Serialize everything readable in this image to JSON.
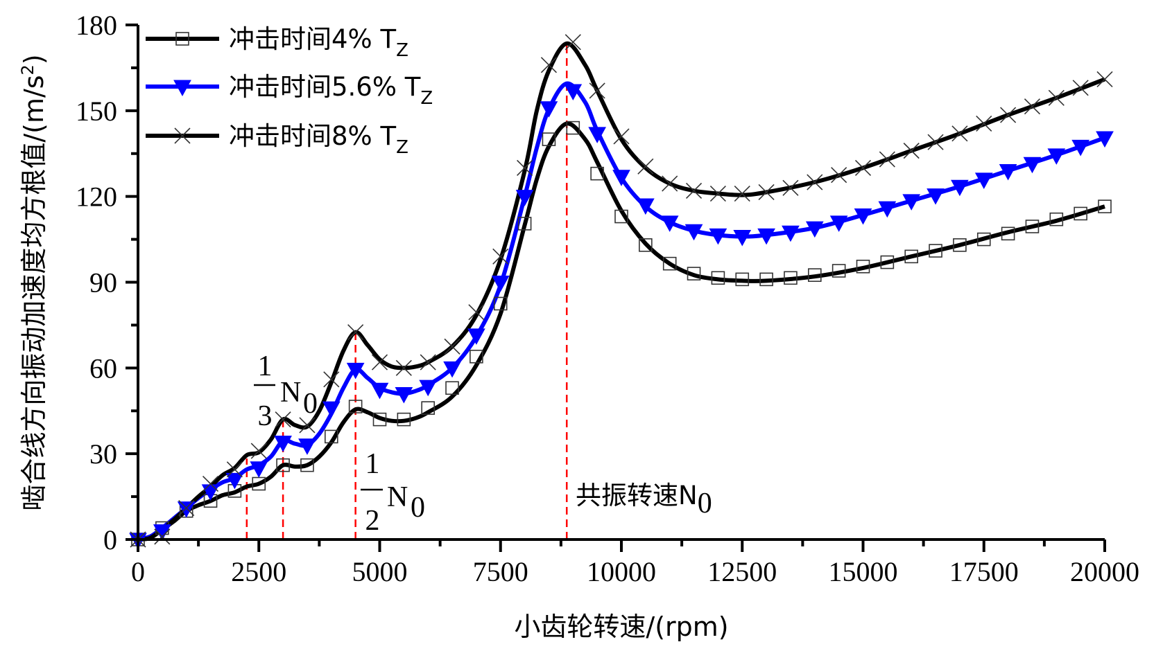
{
  "chart_data": {
    "type": "line",
    "title": "",
    "xlabel": "小齿轮转速/(rpm)",
    "ylabel": "啮合线方向振动加速度均方根值/(m/s²)",
    "ylabel_main": "啮合线方向振动加速度均方根值/(m/s",
    "ylabel_sup": "2",
    "ylabel_close": ")",
    "xlim": [
      0,
      20000
    ],
    "ylim": [
      0,
      180
    ],
    "xticks": [
      0,
      2500,
      5000,
      7500,
      10000,
      12500,
      15000,
      17500,
      20000
    ],
    "xtick_labels": [
      "0",
      "2500",
      "5000",
      "7500",
      "10000",
      "12500",
      "15000",
      "17500",
      "20000"
    ],
    "yticks": [
      0,
      30,
      60,
      90,
      120,
      150,
      180
    ],
    "ytick_labels": [
      "0",
      "30",
      "60",
      "90",
      "120",
      "150",
      "180"
    ],
    "grid": false,
    "legend_position": "top-left",
    "x": [
      0,
      500,
      1000,
      1500,
      2000,
      2500,
      3000,
      3500,
      4000,
      4500,
      5000,
      5500,
      6000,
      6500,
      7000,
      7500,
      8000,
      8500,
      9000,
      9500,
      10000,
      10500,
      11000,
      11500,
      12000,
      12500,
      13000,
      13500,
      14000,
      14500,
      15000,
      15500,
      16000,
      16500,
      17000,
      17500,
      18000,
      18500,
      19000,
      19500,
      20000
    ],
    "series": [
      {
        "name": "冲击时间4% T",
        "name_main": "冲击时间4% T",
        "name_sub": "Z",
        "color": "#000000",
        "marker": "square",
        "values": [
          0,
          4,
          10,
          13.5,
          17,
          19.5,
          26,
          26,
          36,
          46.5,
          42,
          42,
          46,
          53,
          64,
          82.5,
          110.5,
          140,
          144,
          128,
          113,
          103,
          96.5,
          93,
          91.5,
          91,
          91,
          91.5,
          92.5,
          94,
          95.5,
          97,
          99,
          101,
          103,
          105,
          107,
          109.5,
          112,
          114,
          116.5
        ]
      },
      {
        "name": "冲击时间5.6% T",
        "name_main": "冲击时间5.6% T",
        "name_sub": "Z",
        "color": "#0000ff",
        "marker": "triangle-down",
        "values": [
          0,
          3,
          11,
          17,
          21,
          25,
          34,
          33,
          46,
          59.5,
          52.5,
          51,
          53.5,
          60,
          71.5,
          90,
          120,
          151,
          157,
          142,
          127,
          117,
          111,
          108,
          106.5,
          106,
          106.5,
          107.5,
          109,
          111,
          113.5,
          116,
          118.5,
          120.5,
          123.5,
          126,
          129,
          131.5,
          134.5,
          137.5,
          140.5
        ]
      },
      {
        "name": "冲击时间8% T",
        "name_main": "冲击时间8% T",
        "name_sub": "Z",
        "color": "#000000",
        "marker": "x",
        "values": [
          0,
          1,
          11,
          19.5,
          24.5,
          31,
          42,
          40,
          56,
          72.5,
          62,
          60,
          62,
          67.5,
          79.5,
          99,
          130,
          166,
          174,
          157,
          141,
          130.5,
          124.5,
          122,
          121,
          121,
          121.5,
          123,
          125,
          127.5,
          130,
          133,
          136,
          139,
          142,
          145.5,
          148.5,
          151.5,
          154.5,
          158,
          161
        ]
      }
    ],
    "curves": [
      {
        "x": [
          0,
          250,
          500,
          750,
          1000,
          1250,
          1500,
          1750,
          2000,
          2250,
          2500,
          2750,
          3000,
          3250,
          3500,
          3750,
          4000,
          4250,
          4500,
          4750,
          5000,
          5250,
          5500,
          5750,
          6000,
          6500,
          7000,
          7500,
          8000,
          8250,
          8500,
          8870,
          9250,
          9500,
          10000,
          10500,
          11000,
          11500,
          12000,
          12500,
          13000,
          14000,
          15000,
          16000,
          17000,
          18000,
          19000,
          20000
        ],
        "y": [
          0,
          1,
          3.5,
          6.5,
          10,
          12,
          13.5,
          15.5,
          16.5,
          18.5,
          19.5,
          22,
          26,
          25.5,
          26,
          29,
          34,
          41,
          45.5,
          44.5,
          42.5,
          41.5,
          41.5,
          42.5,
          44.5,
          50,
          61,
          79,
          110,
          126,
          137.5,
          145.5,
          140,
          132,
          115,
          103.5,
          96.5,
          92.5,
          91,
          90.5,
          90.5,
          92,
          95,
          99,
          103,
          107.5,
          111.5,
          116.5
        ]
      },
      {
        "x": [
          0,
          250,
          500,
          750,
          1000,
          1250,
          1500,
          1750,
          2000,
          2250,
          2500,
          2750,
          3000,
          3250,
          3500,
          3750,
          4000,
          4250,
          4500,
          4750,
          5000,
          5250,
          5500,
          5750,
          6000,
          6500,
          7000,
          7500,
          8000,
          8250,
          8500,
          8870,
          9250,
          9500,
          10000,
          10500,
          11000,
          11500,
          12000,
          12500,
          13000,
          14000,
          15000,
          16000,
          17000,
          18000,
          19000,
          20000
        ],
        "y": [
          0,
          1,
          4,
          7.5,
          11,
          14.5,
          17.5,
          20,
          21.5,
          24.5,
          26,
          29,
          34.5,
          33.5,
          33,
          37,
          44,
          53,
          59.5,
          56.5,
          53,
          51.5,
          51,
          52,
          54,
          60,
          71,
          89,
          120,
          137,
          150.5,
          159.5,
          153,
          143,
          126.5,
          116.5,
          111,
          108,
          106.5,
          106,
          106.5,
          109,
          113.5,
          118.5,
          123.5,
          129,
          134.5,
          140.5
        ]
      },
      {
        "x": [
          0,
          250,
          500,
          750,
          1000,
          1250,
          1500,
          1750,
          2000,
          2250,
          2500,
          2750,
          3000,
          3250,
          3500,
          3750,
          4000,
          4250,
          4500,
          4750,
          5000,
          5250,
          5500,
          5750,
          6000,
          6500,
          7000,
          7500,
          8000,
          8250,
          8500,
          8870,
          9250,
          9500,
          10000,
          10500,
          11000,
          11500,
          12000,
          12500,
          13000,
          14000,
          15000,
          16000,
          17000,
          18000,
          19000,
          20000
        ],
        "y": [
          0,
          0.5,
          3.5,
          7,
          11,
          15,
          18.5,
          22.5,
          25,
          29.5,
          30.5,
          35,
          42,
          40,
          39.5,
          45,
          55,
          66,
          72.5,
          68,
          63,
          60.5,
          60,
          60.5,
          62,
          67.5,
          78.5,
          98,
          129,
          150,
          164,
          173.5,
          166,
          157,
          140,
          130,
          124.5,
          122,
          121,
          120.5,
          121.5,
          125,
          130,
          136,
          142,
          148.5,
          154.5,
          161
        ]
      }
    ],
    "reference_lines": [
      {
        "x": 2250,
        "top": 28.3
      },
      {
        "x": 3000,
        "top": 42
      },
      {
        "x": 4500,
        "top": 72.5
      },
      {
        "x": 8870,
        "top": 174
      }
    ],
    "annotations": [
      {
        "numerator": "1",
        "denominator": "3",
        "main": "N",
        "sub": "0"
      },
      {
        "numerator": "1",
        "denominator": "2",
        "main": "N",
        "sub": "0"
      },
      {
        "text": "共振转速N",
        "sub": "0"
      }
    ],
    "reference_line_color": "#ff0000"
  }
}
